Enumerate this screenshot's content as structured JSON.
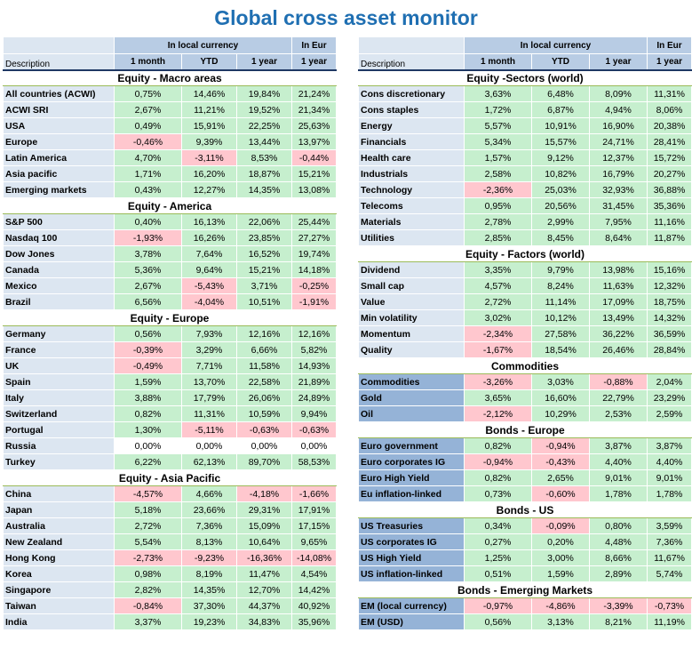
{
  "title": "Global cross asset monitor",
  "headers": {
    "description": "Description",
    "local_currency": "In local currency",
    "in_eur": "In Eur",
    "cols": [
      "1 month",
      "YTD",
      "1 year",
      "1 year"
    ]
  },
  "colors": {
    "title": "#1f6fb2",
    "header": "#b8cce4",
    "label": "#dce6f1",
    "label_dark": "#95b3d7",
    "positive": "#c6efce",
    "negative": "#ffc7ce"
  },
  "left": [
    {
      "section": "Equity - Macro areas",
      "rows": [
        {
          "name": "All countries (ACWI)",
          "v": [
            "0,75%",
            "14,46%",
            "19,84%",
            "21,24%"
          ]
        },
        {
          "name": "ACWI SRI",
          "v": [
            "2,67%",
            "11,21%",
            "19,52%",
            "21,34%"
          ]
        },
        {
          "name": "USA",
          "v": [
            "0,49%",
            "15,91%",
            "22,25%",
            "25,63%"
          ]
        },
        {
          "name": "Europe",
          "v": [
            "-0,46%",
            "9,39%",
            "13,44%",
            "13,97%"
          ]
        },
        {
          "name": "Latin America",
          "v": [
            "4,70%",
            "-3,11%",
            "8,53%",
            "-0,44%"
          ]
        },
        {
          "name": "Asia pacific",
          "v": [
            "1,71%",
            "16,20%",
            "18,87%",
            "15,21%"
          ]
        },
        {
          "name": "Emerging markets",
          "v": [
            "0,43%",
            "12,27%",
            "14,35%",
            "13,08%"
          ]
        }
      ]
    },
    {
      "section": "Equity - America",
      "rows": [
        {
          "name": "S&P 500",
          "v": [
            "0,40%",
            "16,13%",
            "22,06%",
            "25,44%"
          ]
        },
        {
          "name": "Nasdaq 100",
          "v": [
            "-1,93%",
            "16,26%",
            "23,85%",
            "27,27%"
          ]
        },
        {
          "name": "Dow Jones",
          "v": [
            "3,78%",
            "7,64%",
            "16,52%",
            "19,74%"
          ]
        },
        {
          "name": "Canada",
          "v": [
            "5,36%",
            "9,64%",
            "15,21%",
            "14,18%"
          ]
        },
        {
          "name": "Mexico",
          "v": [
            "2,67%",
            "-5,43%",
            "3,71%",
            "-0,25%"
          ]
        },
        {
          "name": "Brazil",
          "v": [
            "6,56%",
            "-4,04%",
            "10,51%",
            "-1,91%"
          ]
        }
      ]
    },
    {
      "section": "Equity - Europe",
      "rows": [
        {
          "name": "Germany",
          "v": [
            "0,56%",
            "7,93%",
            "12,16%",
            "12,16%"
          ]
        },
        {
          "name": "France",
          "v": [
            "-0,39%",
            "3,29%",
            "6,66%",
            "5,82%"
          ]
        },
        {
          "name": "UK",
          "v": [
            "-0,49%",
            "7,71%",
            "11,58%",
            "14,93%"
          ]
        },
        {
          "name": "Spain",
          "v": [
            "1,59%",
            "13,70%",
            "22,58%",
            "21,89%"
          ]
        },
        {
          "name": "Italy",
          "v": [
            "3,88%",
            "17,79%",
            "26,06%",
            "24,89%"
          ]
        },
        {
          "name": "Switzerland",
          "v": [
            "0,82%",
            "11,31%",
            "10,59%",
            "9,94%"
          ]
        },
        {
          "name": "Portugal",
          "v": [
            "1,30%",
            "-5,11%",
            "-0,63%",
            "-0,63%"
          ]
        },
        {
          "name": "Russia",
          "v": [
            "0,00%",
            "0,00%",
            "0,00%",
            "0,00%"
          ]
        },
        {
          "name": "Turkey",
          "v": [
            "6,22%",
            "62,13%",
            "89,70%",
            "58,53%"
          ]
        }
      ]
    },
    {
      "section": "Equity - Asia Pacific",
      "rows": [
        {
          "name": "China",
          "v": [
            "-4,57%",
            "4,66%",
            "-4,18%",
            "-1,66%"
          ]
        },
        {
          "name": "Japan",
          "v": [
            "5,18%",
            "23,66%",
            "29,31%",
            "17,91%"
          ]
        },
        {
          "name": "Australia",
          "v": [
            "2,72%",
            "7,36%",
            "15,09%",
            "17,15%"
          ]
        },
        {
          "name": "New Zealand",
          "v": [
            "5,54%",
            "8,13%",
            "10,64%",
            "9,65%"
          ]
        },
        {
          "name": "Hong Kong",
          "v": [
            "-2,73%",
            "-9,23%",
            "-16,36%",
            "-14,08%"
          ]
        },
        {
          "name": "Korea",
          "v": [
            "0,98%",
            "8,19%",
            "11,47%",
            "4,54%"
          ]
        },
        {
          "name": "Singapore",
          "v": [
            "2,82%",
            "14,35%",
            "12,70%",
            "14,42%"
          ]
        },
        {
          "name": "Taiwan",
          "v": [
            "-0,84%",
            "37,30%",
            "44,37%",
            "40,92%"
          ]
        },
        {
          "name": "India",
          "v": [
            "3,37%",
            "19,23%",
            "34,83%",
            "35,96%"
          ]
        }
      ]
    }
  ],
  "right": [
    {
      "section": "Equity -Sectors (world)",
      "rows": [
        {
          "name": "Cons discretionary",
          "v": [
            "3,63%",
            "6,48%",
            "8,09%",
            "11,31%"
          ]
        },
        {
          "name": "Cons staples",
          "v": [
            "1,72%",
            "6,87%",
            "4,94%",
            "8,06%"
          ]
        },
        {
          "name": "Energy",
          "v": [
            "5,57%",
            "10,91%",
            "16,90%",
            "20,38%"
          ]
        },
        {
          "name": "Financials",
          "v": [
            "5,34%",
            "15,57%",
            "24,71%",
            "28,41%"
          ]
        },
        {
          "name": "Health care",
          "v": [
            "1,57%",
            "9,12%",
            "12,37%",
            "15,72%"
          ]
        },
        {
          "name": "Industrials",
          "v": [
            "2,58%",
            "10,82%",
            "16,79%",
            "20,27%"
          ]
        },
        {
          "name": "Technology",
          "v": [
            "-2,36%",
            "25,03%",
            "32,93%",
            "36,88%"
          ]
        },
        {
          "name": "Telecoms",
          "v": [
            "0,95%",
            "20,56%",
            "31,45%",
            "35,36%"
          ]
        },
        {
          "name": "Materials",
          "v": [
            "2,78%",
            "2,99%",
            "7,95%",
            "11,16%"
          ]
        },
        {
          "name": "Utilities",
          "v": [
            "2,85%",
            "8,45%",
            "8,64%",
            "11,87%"
          ]
        }
      ]
    },
    {
      "section": "Equity - Factors (world)",
      "rows": [
        {
          "name": "Dividend",
          "v": [
            "3,35%",
            "9,79%",
            "13,98%",
            "15,16%"
          ]
        },
        {
          "name": "Small cap",
          "v": [
            "4,57%",
            "8,24%",
            "11,63%",
            "12,32%"
          ]
        },
        {
          "name": "Value",
          "v": [
            "2,72%",
            "11,14%",
            "17,09%",
            "18,75%"
          ]
        },
        {
          "name": "Min volatility",
          "v": [
            "3,02%",
            "10,12%",
            "13,49%",
            "14,32%"
          ]
        },
        {
          "name": "Momentum",
          "v": [
            "-2,34%",
            "27,58%",
            "36,22%",
            "36,59%"
          ]
        },
        {
          "name": "Quality",
          "v": [
            "-1,67%",
            "18,54%",
            "26,46%",
            "28,84%"
          ]
        }
      ]
    },
    {
      "section": "Commodities",
      "dark": true,
      "rows": [
        {
          "name": "Commodities",
          "v": [
            "-3,26%",
            "3,03%",
            "-0,88%",
            "2,04%"
          ]
        },
        {
          "name": "Gold",
          "v": [
            "3,65%",
            "16,60%",
            "22,79%",
            "23,29%"
          ]
        },
        {
          "name": "Oil",
          "v": [
            "-2,12%",
            "10,29%",
            "2,53%",
            "2,59%"
          ]
        }
      ]
    },
    {
      "section": "Bonds - Europe",
      "dark": true,
      "rows": [
        {
          "name": "Euro government",
          "v": [
            "0,82%",
            "-0,94%",
            "3,87%",
            "3,87%"
          ]
        },
        {
          "name": "Euro corporates IG",
          "v": [
            "-0,94%",
            "-0,43%",
            "4,40%",
            "4,40%"
          ]
        },
        {
          "name": "Euro High Yield",
          "v": [
            "0,82%",
            "2,65%",
            "9,01%",
            "9,01%"
          ]
        },
        {
          "name": "Eu inflation-linked",
          "v": [
            "0,73%",
            "-0,60%",
            "1,78%",
            "1,78%"
          ]
        }
      ]
    },
    {
      "section": "Bonds - US",
      "dark": true,
      "rows": [
        {
          "name": "US Treasuries",
          "v": [
            "0,34%",
            "-0,09%",
            "0,80%",
            "3,59%"
          ]
        },
        {
          "name": "US corporates IG",
          "v": [
            "0,27%",
            "0,20%",
            "4,48%",
            "7,36%"
          ]
        },
        {
          "name": "US High Yield",
          "v": [
            "1,25%",
            "3,00%",
            "8,66%",
            "11,67%"
          ]
        },
        {
          "name": "US inflation-linked",
          "v": [
            "0,51%",
            "1,59%",
            "2,89%",
            "5,74%"
          ]
        }
      ]
    },
    {
      "section": "Bonds - Emerging Markets",
      "dark": true,
      "rows": [
        {
          "name": "EM (local currency)",
          "v": [
            "-0,97%",
            "-4,86%",
            "-3,39%",
            "-0,73%"
          ]
        },
        {
          "name": "EM (USD)",
          "v": [
            "0,56%",
            "3,13%",
            "8,21%",
            "11,19%"
          ]
        }
      ]
    }
  ]
}
